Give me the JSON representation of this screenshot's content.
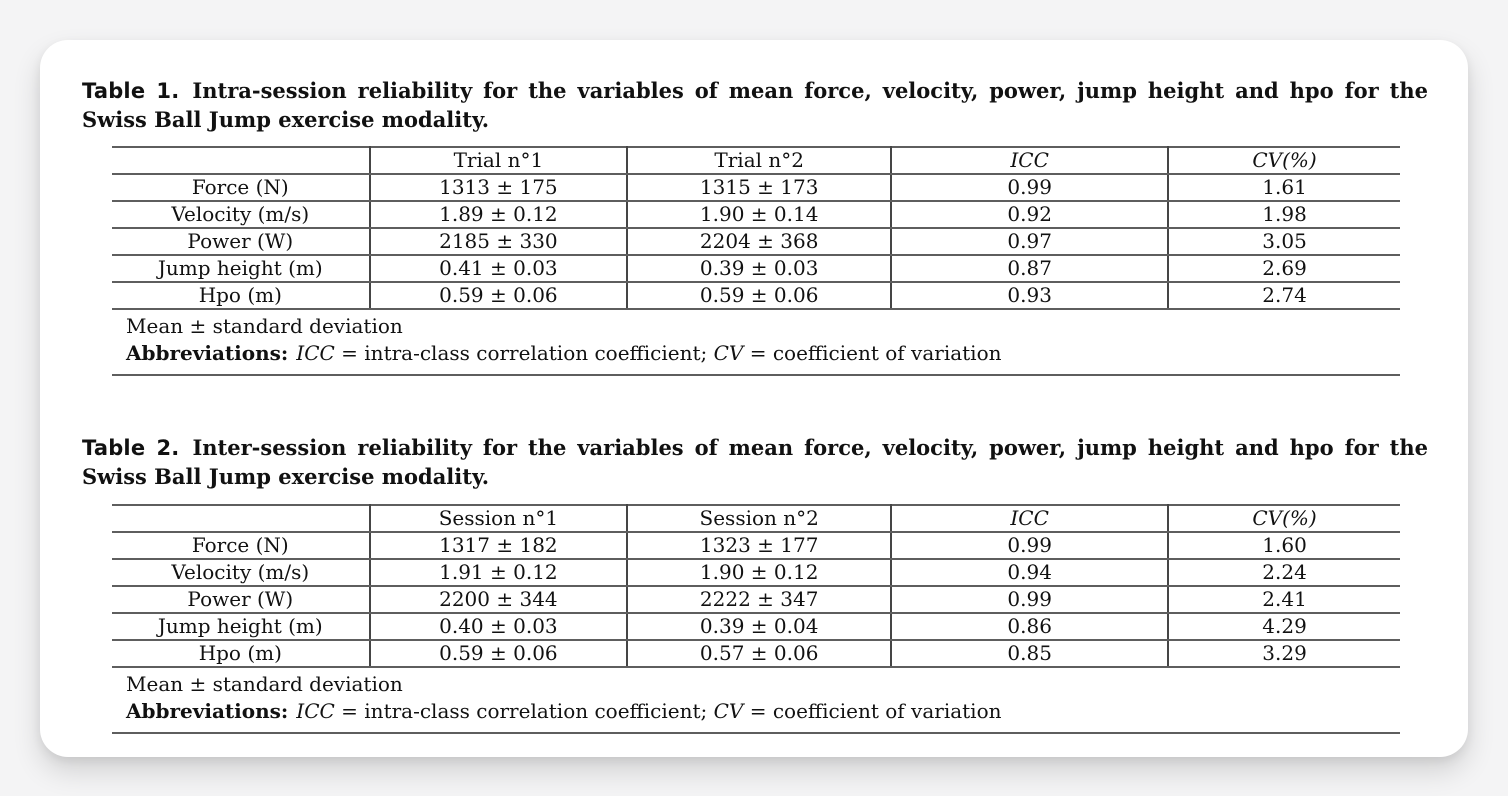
{
  "colors": {
    "page_background": "#f4f4f5",
    "card_background": "#ffffff",
    "horizontal_rule": "#5e5e5e",
    "vertical_rule": "#454545",
    "text": "#111111"
  },
  "tables": [
    {
      "label": "Table 1.",
      "caption": "Intra-session reliability for the variables of mean force, velocity, power, jump height and hpo for the Swiss Ball Jump exercise modality.",
      "columns": [
        "",
        "Trial n°1",
        "Trial n°2",
        "ICC",
        "CV(%)"
      ],
      "rows": [
        {
          "label": "Force (N)",
          "values": [
            "1313 ± 175",
            "1315 ± 173",
            "0.99",
            "1.61"
          ]
        },
        {
          "label": "Velocity (m/s)",
          "values": [
            "1.89 ± 0.12",
            "1.90 ± 0.14",
            "0.92",
            "1.98"
          ]
        },
        {
          "label": "Power (W)",
          "values": [
            "2185 ± 330",
            "2204 ± 368",
            "0.97",
            "3.05"
          ]
        },
        {
          "label": "Jump height (m)",
          "values": [
            "0.41 ± 0.03",
            "0.39 ± 0.03",
            "0.87",
            "2.69"
          ]
        },
        {
          "label": "Hpo (m)",
          "values": [
            "0.59 ± 0.06",
            "0.59 ± 0.06",
            "0.93",
            "2.74"
          ]
        }
      ],
      "footnotes": {
        "mean_sd": "Mean ± standard deviation",
        "abbreviations_label": "Abbreviations:",
        "abbreviations_segments": [
          {
            "text": "ICC",
            "italic": true
          },
          {
            "text": " = intra-class correlation coefficient; ",
            "italic": false
          },
          {
            "text": "CV",
            "italic": true
          },
          {
            "text": " = coefficient of variation",
            "italic": false
          }
        ]
      }
    },
    {
      "label": "Table 2.",
      "caption": "Inter-session reliability for the variables of mean force, velocity, power, jump height and hpo for the Swiss Ball Jump exercise modality.",
      "columns": [
        "",
        "Session n°1",
        "Session n°2",
        "ICC",
        "CV(%)"
      ],
      "rows": [
        {
          "label": "Force (N)",
          "values": [
            "1317 ± 182",
            "1323 ± 177",
            "0.99",
            "1.60"
          ]
        },
        {
          "label": "Velocity (m/s)",
          "values": [
            "1.91 ± 0.12",
            "1.90 ± 0.12",
            "0.94",
            "2.24"
          ]
        },
        {
          "label": "Power (W)",
          "values": [
            "2200 ± 344",
            "2222 ± 347",
            "0.99",
            "2.41"
          ]
        },
        {
          "label": "Jump height (m)",
          "values": [
            "0.40 ± 0.03",
            "0.39 ± 0.04",
            "0.86",
            "4.29"
          ]
        },
        {
          "label": "Hpo (m)",
          "values": [
            "0.59 ± 0.06",
            "0.57 ± 0.06",
            "0.85",
            "3.29"
          ]
        }
      ],
      "footnotes": {
        "mean_sd": "Mean ± standard deviation",
        "abbreviations_label": "Abbreviations:",
        "abbreviations_segments": [
          {
            "text": "ICC",
            "italic": true
          },
          {
            "text": " = intra-class correlation coefficient; ",
            "italic": false
          },
          {
            "text": "CV",
            "italic": true
          },
          {
            "text": " = coefficient of variation",
            "italic": false
          }
        ]
      }
    }
  ]
}
